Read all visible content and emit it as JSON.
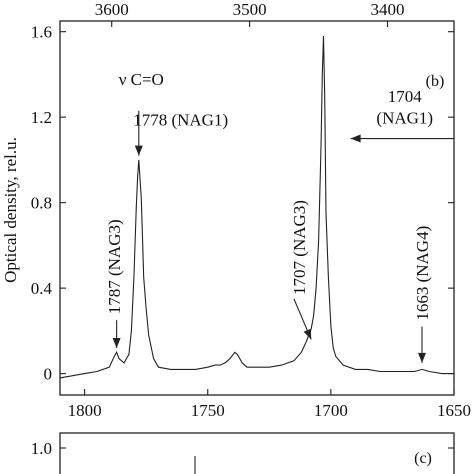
{
  "chart_data": [
    {
      "type": "line",
      "panel_label": "(b)",
      "ylabel": "Optical density, rel.u.",
      "xlim": [
        1810,
        1650
      ],
      "ylim": [
        -0.1,
        1.65
      ],
      "x_ticks": [
        "1800",
        "1750",
        "1700",
        "1650"
      ],
      "x_tick_values": [
        1800,
        1750,
        1700,
        1650
      ],
      "top_ticks": [
        "3600",
        "3500",
        "3400"
      ],
      "top_tick_values": [
        1789,
        1733,
        1677
      ],
      "y_ticks": [
        "0",
        "0.4",
        "0.8",
        "1.2",
        "1.6"
      ],
      "y_tick_values": [
        0,
        0.4,
        0.8,
        1.2,
        1.6
      ],
      "grid": false,
      "legend": "none",
      "series": [
        {
          "color": "#222222",
          "x": [
            1810,
            1800,
            1795,
            1790,
            1788,
            1787,
            1786,
            1784,
            1782,
            1781,
            1780,
            1779,
            1778.5,
            1778,
            1777,
            1776,
            1775,
            1774,
            1772,
            1770,
            1765,
            1760,
            1755,
            1750,
            1747,
            1745,
            1743,
            1741,
            1739,
            1738,
            1737,
            1736,
            1735,
            1734,
            1732,
            1730,
            1725,
            1720,
            1715,
            1712,
            1710,
            1708,
            1707,
            1706,
            1705,
            1704,
            1703.5,
            1703,
            1702.5,
            1702,
            1701,
            1700,
            1699,
            1698,
            1695,
            1690,
            1685,
            1680,
            1675,
            1670,
            1666,
            1663,
            1660,
            1655,
            1650
          ],
          "y": [
            -0.02,
            0.0,
            0.01,
            0.03,
            0.08,
            0.1,
            0.07,
            0.05,
            0.09,
            0.2,
            0.45,
            0.78,
            0.92,
            1.0,
            0.82,
            0.45,
            0.3,
            0.18,
            0.07,
            0.03,
            0.02,
            0.02,
            0.02,
            0.03,
            0.04,
            0.04,
            0.05,
            0.07,
            0.1,
            0.09,
            0.07,
            0.05,
            0.04,
            0.03,
            0.03,
            0.03,
            0.03,
            0.04,
            0.06,
            0.1,
            0.15,
            0.21,
            0.27,
            0.4,
            0.62,
            1.06,
            1.4,
            1.58,
            1.3,
            0.75,
            0.45,
            0.22,
            0.12,
            0.08,
            0.04,
            0.02,
            0.02,
            0.01,
            0.01,
            0.01,
            0.01,
            0.02,
            0.01,
            0.0,
            0.0
          ]
        }
      ],
      "annotations": [
        {
          "text": "ν C=O",
          "x": 1777,
          "y": 1.35,
          "rotate": false
        },
        {
          "text": "1778 (NAG1)",
          "x": 1761,
          "y": 1.16,
          "rotate": false
        },
        {
          "text": "1704",
          "x": 1670,
          "y": 1.27,
          "rotate": false
        },
        {
          "text": "(NAG1)",
          "x": 1670,
          "y": 1.17,
          "rotate": false
        },
        {
          "text": "1787 (NAG3)",
          "x": 1788,
          "y": 0.5,
          "rotate": true
        },
        {
          "text": "1707 (NAG3)",
          "x": 1713,
          "y": 0.59,
          "rotate": true
        },
        {
          "text": "1663 (NAG4)",
          "x": 1663,
          "y": 0.47,
          "rotate": true
        }
      ],
      "arrows": [
        {
          "from": [
            1778,
            1.23
          ],
          "to": [
            1778,
            1.02
          ]
        },
        {
          "from": [
            1650,
            1.1
          ],
          "to": [
            1692,
            1.1
          ]
        },
        {
          "from": [
            1787,
            0.25
          ],
          "to": [
            1787,
            0.12
          ]
        },
        {
          "from": [
            1715,
            0.35
          ],
          "to": [
            1708,
            0.16
          ]
        },
        {
          "from": [
            1663,
            0.22
          ],
          "to": [
            1663,
            0.05
          ]
        }
      ]
    },
    {
      "type": "line",
      "panel_label": "(c)",
      "y_ticks": [
        "1.0"
      ],
      "y_tick_values": [
        1.0
      ]
    }
  ]
}
